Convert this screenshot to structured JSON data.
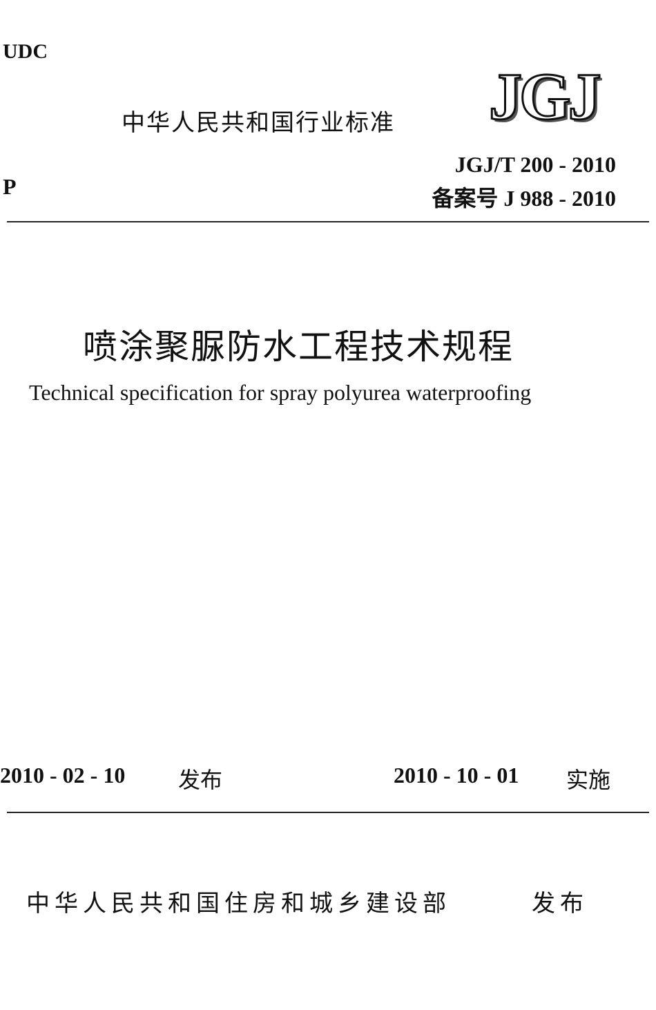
{
  "header": {
    "udc": "UDC",
    "category": "中华人民共和国行业标准",
    "logo": "JGJ",
    "code": "JGJ/T 200 - 2010",
    "record": "备案号 J 988 - 2010",
    "class_mark": "P"
  },
  "title": {
    "zh": "喷涂聚脲防水工程技术规程",
    "en": "Technical specification for spray polyurea waterproofing"
  },
  "dates": {
    "issue_date": "2010 - 02 - 10",
    "issue_label": "发布",
    "effective_date": "2010 - 10 - 01",
    "effective_label": "实施"
  },
  "footer": {
    "publisher": "中华人民共和国住房和城乡建设部",
    "action": "发布"
  }
}
